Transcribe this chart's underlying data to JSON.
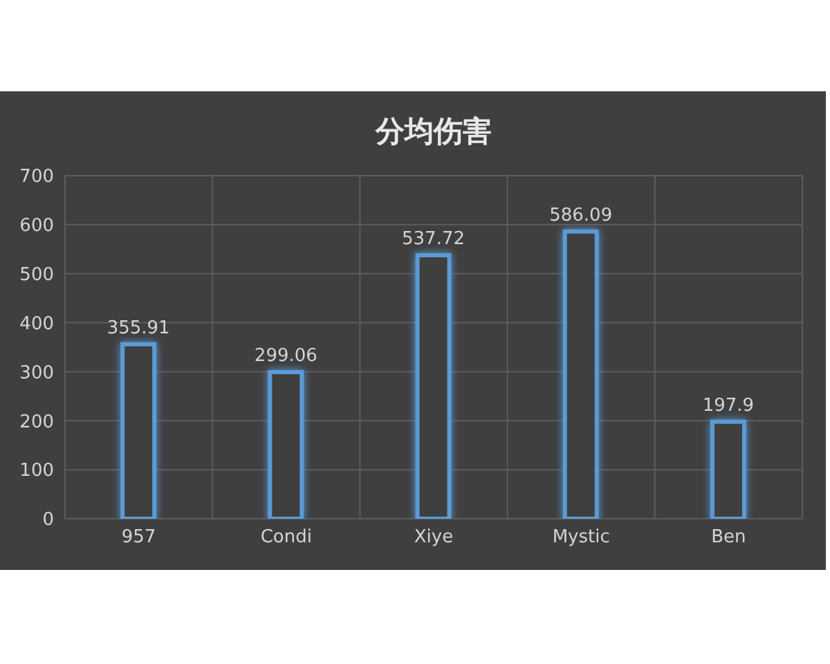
{
  "chart_data": {
    "type": "bar",
    "title": "分均伤害",
    "categories": [
      "957",
      "Condi",
      "Xiye",
      "Mystic",
      "Ben"
    ],
    "values": [
      355.91,
      299.06,
      537.72,
      586.09,
      197.9
    ],
    "color": "#5b9bd5",
    "ylim": [
      0,
      700
    ],
    "yticks": [
      0,
      100,
      200,
      300,
      400,
      500,
      600,
      700
    ],
    "grid": true,
    "data_labels": true
  }
}
